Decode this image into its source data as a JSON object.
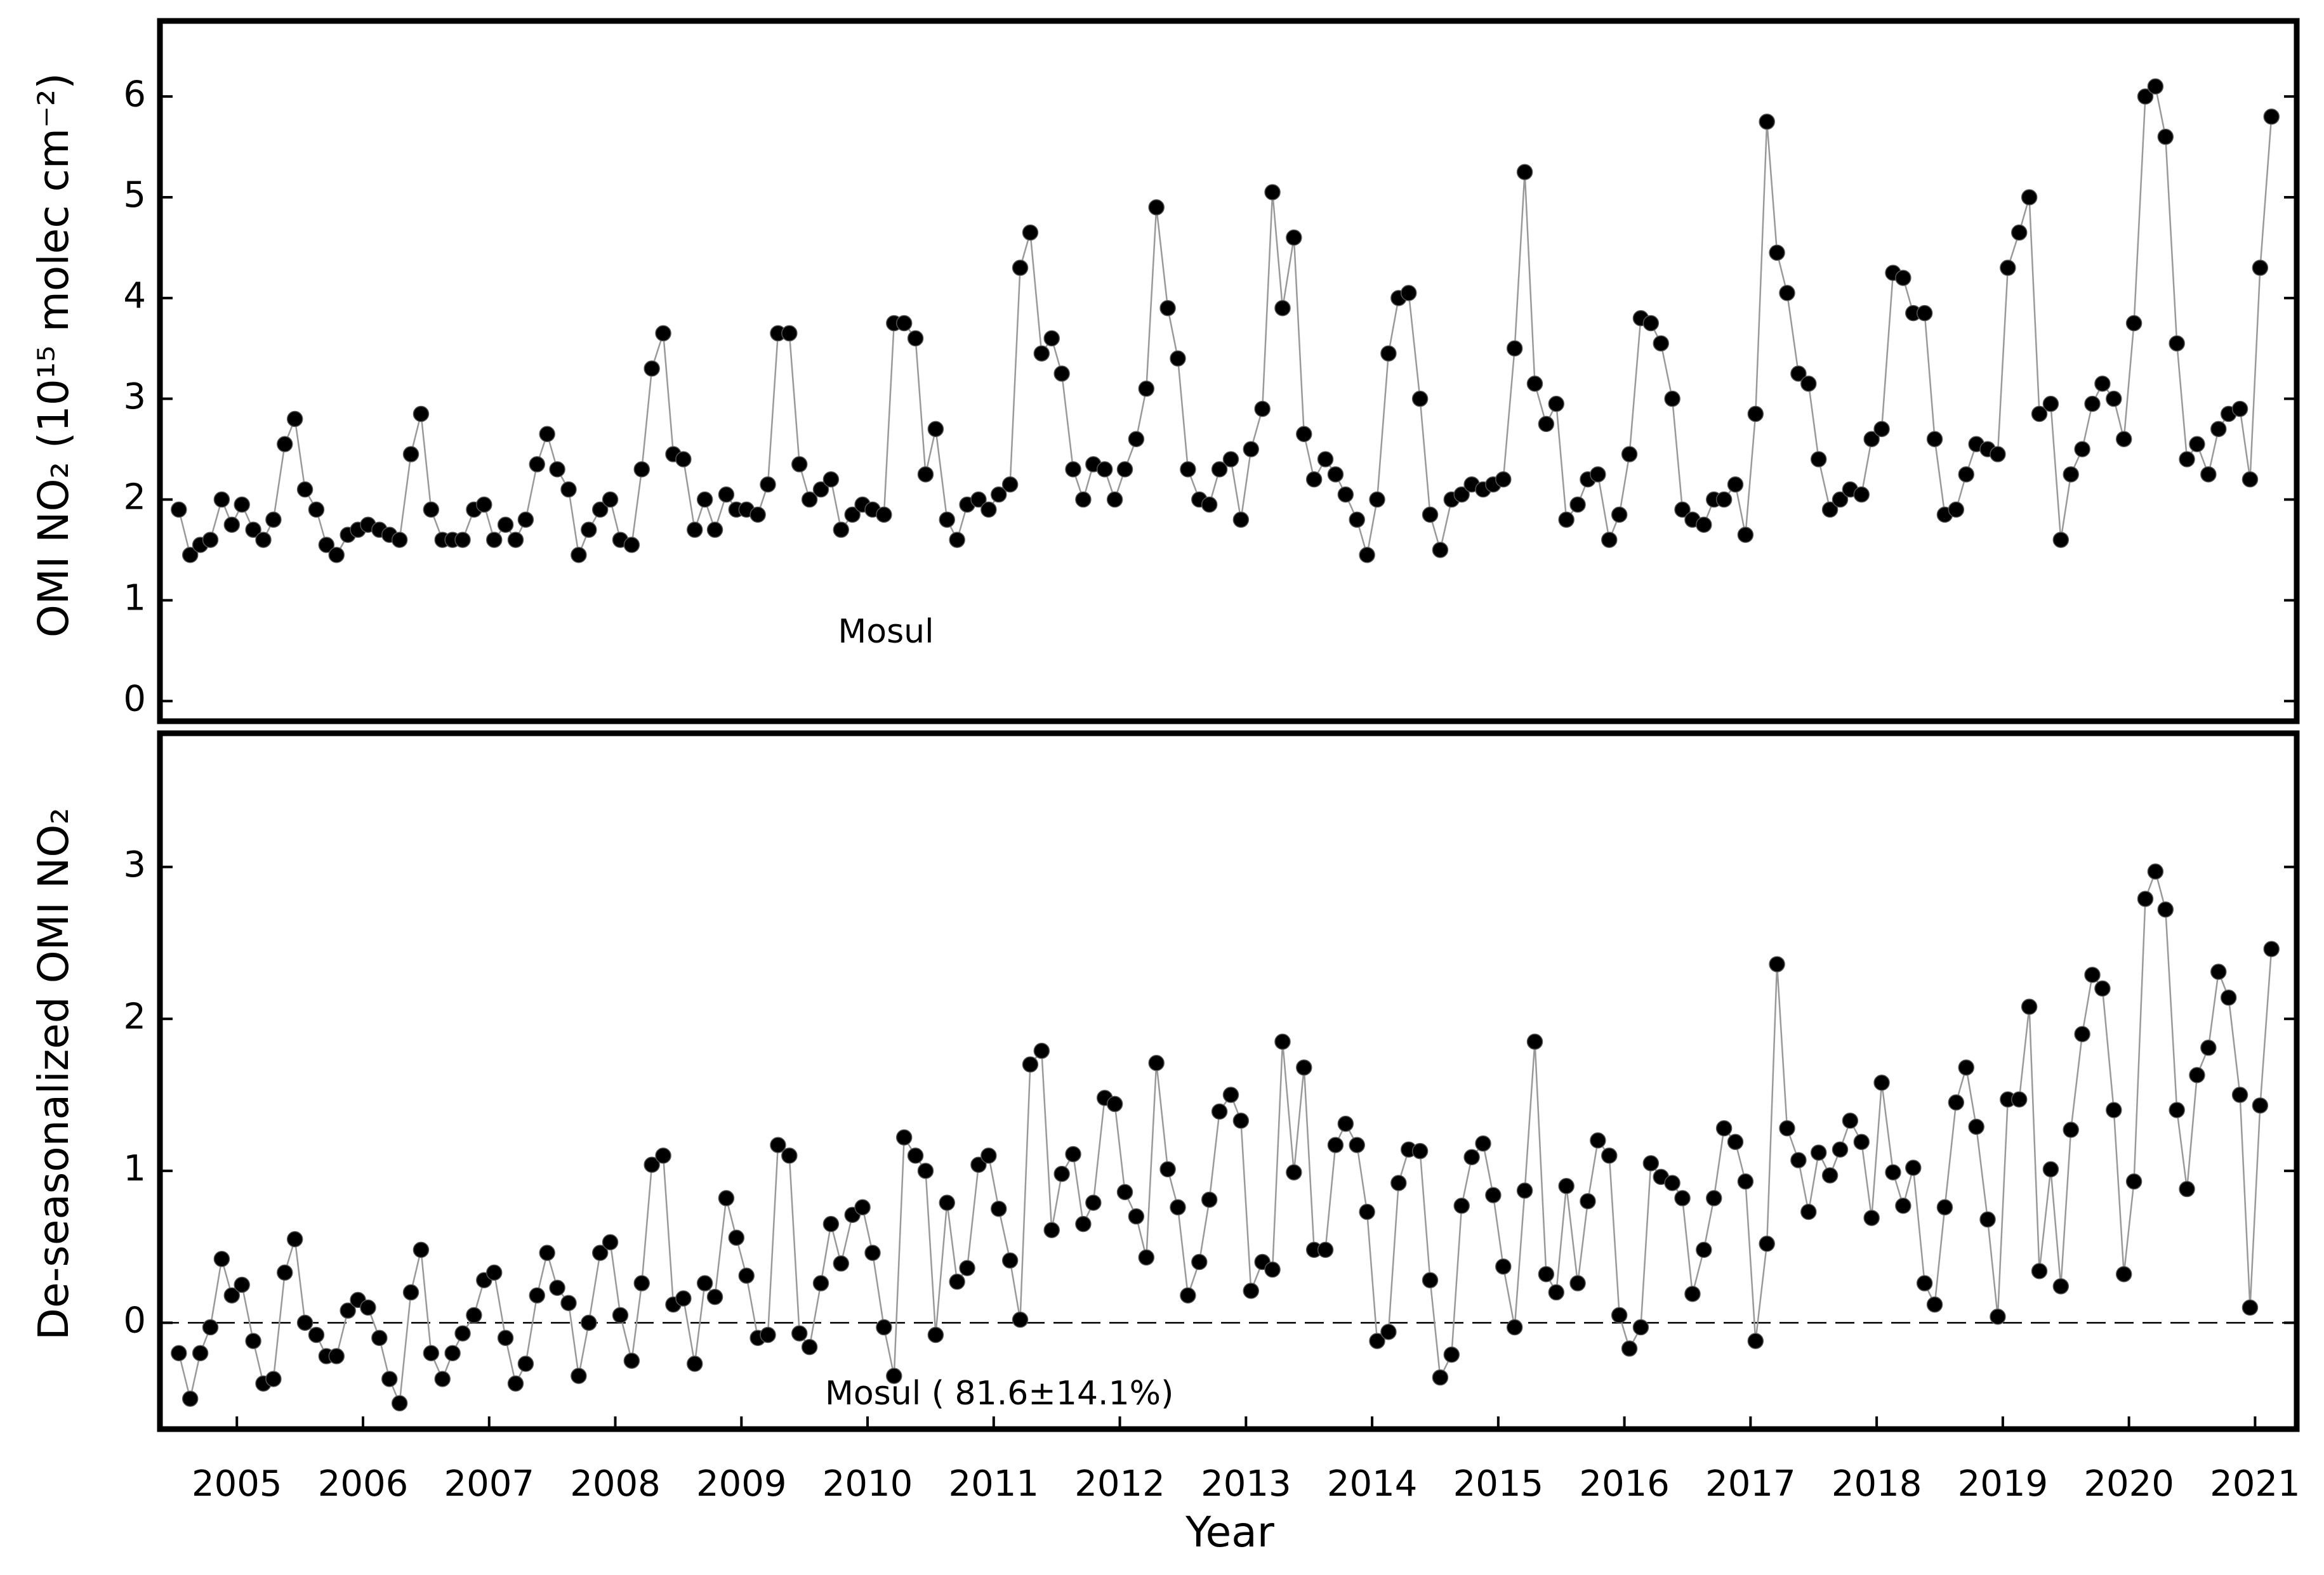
{
  "chart_data": [
    {
      "type": "line",
      "y_label": "OMI NO₂ (10¹⁵ molec cm⁻²)",
      "annotation": "Mosul",
      "line_color": "#999999",
      "marker_color": "#000000",
      "xlim": [
        2004.89,
        2021.83
      ],
      "ylim": [
        -0.2,
        6.75
      ],
      "yticks": [
        0,
        1,
        2,
        3,
        4,
        5,
        6
      ],
      "x": [
        2005.04,
        2005.13,
        2005.21,
        2005.29,
        2005.38,
        2005.46,
        2005.54,
        2005.63,
        2005.71,
        2005.79,
        2005.88,
        2005.96,
        2006.04,
        2006.13,
        2006.21,
        2006.29,
        2006.38,
        2006.46,
        2006.54,
        2006.63,
        2006.71,
        2006.79,
        2006.88,
        2006.96,
        2007.04,
        2007.13,
        2007.21,
        2007.29,
        2007.38,
        2007.46,
        2007.54,
        2007.63,
        2007.71,
        2007.79,
        2007.88,
        2007.96,
        2008.04,
        2008.13,
        2008.21,
        2008.29,
        2008.38,
        2008.46,
        2008.54,
        2008.63,
        2008.71,
        2008.79,
        2008.88,
        2008.96,
        2009.04,
        2009.13,
        2009.21,
        2009.29,
        2009.38,
        2009.46,
        2009.54,
        2009.63,
        2009.71,
        2009.79,
        2009.88,
        2009.96,
        2010.04,
        2010.13,
        2010.21,
        2010.29,
        2010.38,
        2010.46,
        2010.54,
        2010.63,
        2010.71,
        2010.79,
        2010.88,
        2010.96,
        2011.04,
        2011.13,
        2011.21,
        2011.29,
        2011.38,
        2011.46,
        2011.54,
        2011.63,
        2011.71,
        2011.79,
        2011.88,
        2011.96,
        2012.04,
        2012.13,
        2012.21,
        2012.29,
        2012.38,
        2012.46,
        2012.54,
        2012.63,
        2012.71,
        2012.79,
        2012.88,
        2012.96,
        2013.04,
        2013.13,
        2013.21,
        2013.29,
        2013.38,
        2013.46,
        2013.54,
        2013.63,
        2013.71,
        2013.79,
        2013.88,
        2013.96,
        2014.04,
        2014.13,
        2014.21,
        2014.29,
        2014.38,
        2014.46,
        2014.54,
        2014.63,
        2014.71,
        2014.79,
        2014.88,
        2014.96,
        2015.04,
        2015.13,
        2015.21,
        2015.29,
        2015.38,
        2015.46,
        2015.54,
        2015.63,
        2015.71,
        2015.79,
        2015.88,
        2015.96,
        2016.04,
        2016.13,
        2016.21,
        2016.29,
        2016.38,
        2016.46,
        2016.54,
        2016.63,
        2016.71,
        2016.79,
        2016.88,
        2016.96,
        2017.04,
        2017.13,
        2017.21,
        2017.29,
        2017.38,
        2017.46,
        2017.54,
        2017.63,
        2017.71,
        2017.79,
        2017.88,
        2017.96,
        2018.04,
        2018.13,
        2018.21,
        2018.29,
        2018.38,
        2018.46,
        2018.54,
        2018.63,
        2018.71,
        2018.79,
        2018.88,
        2018.96,
        2019.04,
        2019.13,
        2019.21,
        2019.29,
        2019.38,
        2019.46,
        2019.54,
        2019.63,
        2019.71,
        2019.79,
        2019.88,
        2019.96,
        2020.04,
        2020.13,
        2020.21,
        2020.29,
        2020.38,
        2020.46,
        2020.54,
        2020.63,
        2020.71,
        2020.79,
        2020.88,
        2020.96,
        2021.04,
        2021.13,
        2021.21,
        2021.29,
        2021.38,
        2021.46,
        2021.54,
        2021.63
      ],
      "values": [
        1.9,
        1.45,
        1.55,
        1.6,
        2.0,
        1.75,
        1.95,
        1.7,
        1.6,
        1.8,
        2.55,
        2.8,
        2.1,
        1.9,
        1.55,
        1.45,
        1.65,
        1.7,
        1.75,
        1.7,
        1.65,
        1.6,
        2.45,
        2.85,
        1.9,
        1.6,
        1.6,
        1.6,
        1.9,
        1.95,
        1.6,
        1.75,
        1.6,
        1.8,
        2.35,
        2.65,
        2.3,
        2.1,
        1.45,
        1.7,
        1.9,
        2.0,
        1.6,
        1.55,
        2.3,
        3.3,
        3.65,
        2.45,
        2.4,
        1.7,
        2.0,
        1.7,
        2.05,
        1.9,
        1.9,
        1.85,
        2.15,
        3.65,
        3.65,
        2.35,
        2.0,
        2.1,
        2.2,
        1.7,
        1.85,
        1.95,
        1.9,
        1.85,
        3.75,
        3.75,
        3.6,
        2.25,
        2.7,
        1.8,
        1.6,
        1.95,
        2.0,
        1.9,
        2.05,
        2.15,
        4.3,
        4.65,
        3.45,
        3.6,
        3.25,
        2.3,
        2.0,
        2.35,
        2.3,
        2.0,
        2.3,
        2.6,
        3.1,
        4.9,
        3.9,
        3.4,
        2.3,
        2.0,
        1.95,
        2.3,
        2.4,
        1.8,
        2.5,
        2.9,
        5.05,
        3.9,
        4.6,
        2.65,
        2.2,
        2.4,
        2.25,
        2.05,
        1.8,
        1.45,
        2.0,
        3.45,
        4.0,
        4.05,
        3.0,
        1.85,
        1.5,
        2.0,
        2.05,
        2.15,
        2.1,
        2.15,
        2.2,
        3.5,
        5.25,
        3.15,
        2.75,
        2.95,
        1.8,
        1.95,
        2.2,
        2.25,
        1.6,
        1.85,
        2.45,
        3.8,
        3.75,
        3.55,
        3.0,
        1.9,
        1.8,
        1.75,
        2.0,
        2.0,
        2.15,
        1.65,
        2.85,
        5.75,
        4.45,
        4.05,
        3.25,
        3.15,
        2.4,
        1.9,
        2.0,
        2.1,
        2.05,
        2.6,
        2.7,
        4.25,
        4.2,
        3.85,
        3.85,
        2.6,
        1.85,
        1.9,
        2.25,
        2.55,
        2.5,
        2.45,
        4.3,
        4.65,
        5.0,
        2.85,
        2.95,
        1.6,
        2.25,
        2.5,
        2.95,
        3.15,
        3.0,
        2.6,
        3.75,
        6.0,
        6.1,
        5.6,
        3.55,
        2.4,
        2.55,
        2.25,
        2.7,
        2.85,
        2.9,
        2.2,
        4.3,
        5.8
      ]
    },
    {
      "type": "line",
      "y_label": "De-seasonalized OMI NO₂",
      "x_label": "Year",
      "annotation": "Mosul ( 81.6±14.1%)",
      "line_color": "#999999",
      "marker_color": "#000000",
      "reference_line": {
        "value": 0,
        "style": "dashed"
      },
      "xlim": [
        2004.89,
        2021.83
      ],
      "xticks": [
        {
          "value": 2005.5,
          "label": "2005"
        },
        {
          "value": 2006.5,
          "label": "2006"
        },
        {
          "value": 2007.5,
          "label": "2007"
        },
        {
          "value": 2008.5,
          "label": "2008"
        },
        {
          "value": 2009.5,
          "label": "2009"
        },
        {
          "value": 2010.5,
          "label": "2010"
        },
        {
          "value": 2011.5,
          "label": "2011"
        },
        {
          "value": 2012.5,
          "label": "2012"
        },
        {
          "value": 2013.5,
          "label": "2013"
        },
        {
          "value": 2014.5,
          "label": "2014"
        },
        {
          "value": 2015.5,
          "label": "2015"
        },
        {
          "value": 2016.5,
          "label": "2016"
        },
        {
          "value": 2017.5,
          "label": "2017"
        },
        {
          "value": 2018.5,
          "label": "2018"
        },
        {
          "value": 2019.5,
          "label": "2019"
        },
        {
          "value": 2020.5,
          "label": "2020"
        },
        {
          "value": 2021.5,
          "label": "2021"
        }
      ],
      "ylim": [
        -0.7,
        3.88
      ],
      "yticks": [
        0,
        1,
        2,
        3
      ],
      "x": [
        2005.04,
        2005.13,
        2005.21,
        2005.29,
        2005.38,
        2005.46,
        2005.54,
        2005.63,
        2005.71,
        2005.79,
        2005.88,
        2005.96,
        2006.04,
        2006.13,
        2006.21,
        2006.29,
        2006.38,
        2006.46,
        2006.54,
        2006.63,
        2006.71,
        2006.79,
        2006.88,
        2006.96,
        2007.04,
        2007.13,
        2007.21,
        2007.29,
        2007.38,
        2007.46,
        2007.54,
        2007.63,
        2007.71,
        2007.79,
        2007.88,
        2007.96,
        2008.04,
        2008.13,
        2008.21,
        2008.29,
        2008.38,
        2008.46,
        2008.54,
        2008.63,
        2008.71,
        2008.79,
        2008.88,
        2008.96,
        2009.04,
        2009.13,
        2009.21,
        2009.29,
        2009.38,
        2009.46,
        2009.54,
        2009.63,
        2009.71,
        2009.79,
        2009.88,
        2009.96,
        2010.04,
        2010.13,
        2010.21,
        2010.29,
        2010.38,
        2010.46,
        2010.54,
        2010.63,
        2010.71,
        2010.79,
        2010.88,
        2010.96,
        2011.04,
        2011.13,
        2011.21,
        2011.29,
        2011.38,
        2011.46,
        2011.54,
        2011.63,
        2011.71,
        2011.79,
        2011.88,
        2011.96,
        2012.04,
        2012.13,
        2012.21,
        2012.29,
        2012.38,
        2012.46,
        2012.54,
        2012.63,
        2012.71,
        2012.79,
        2012.88,
        2012.96,
        2013.04,
        2013.13,
        2013.21,
        2013.29,
        2013.38,
        2013.46,
        2013.54,
        2013.63,
        2013.71,
        2013.79,
        2013.88,
        2013.96,
        2014.04,
        2014.13,
        2014.21,
        2014.29,
        2014.38,
        2014.46,
        2014.54,
        2014.63,
        2014.71,
        2014.79,
        2014.88,
        2014.96,
        2015.04,
        2015.13,
        2015.21,
        2015.29,
        2015.38,
        2015.46,
        2015.54,
        2015.63,
        2015.71,
        2015.79,
        2015.88,
        2015.96,
        2016.04,
        2016.13,
        2016.21,
        2016.29,
        2016.38,
        2016.46,
        2016.54,
        2016.63,
        2016.71,
        2016.79,
        2016.88,
        2016.96,
        2017.04,
        2017.13,
        2017.21,
        2017.29,
        2017.38,
        2017.46,
        2017.54,
        2017.63,
        2017.71,
        2017.79,
        2017.88,
        2017.96,
        2018.04,
        2018.13,
        2018.21,
        2018.29,
        2018.38,
        2018.46,
        2018.54,
        2018.63,
        2018.71,
        2018.79,
        2018.88,
        2018.96,
        2019.04,
        2019.13,
        2019.21,
        2019.29,
        2019.38,
        2019.46,
        2019.54,
        2019.63,
        2019.71,
        2019.79,
        2019.88,
        2019.96,
        2020.04,
        2020.13,
        2020.21,
        2020.29,
        2020.38,
        2020.46,
        2020.54,
        2020.63,
        2020.71,
        2020.79,
        2020.88,
        2020.96,
        2021.04,
        2021.13,
        2021.21,
        2021.29,
        2021.38,
        2021.46,
        2021.54,
        2021.63
      ],
      "values": [
        -0.2,
        -0.5,
        -0.2,
        -0.03,
        0.42,
        0.18,
        0.25,
        -0.12,
        -0.4,
        -0.37,
        0.33,
        0.55,
        0.0,
        -0.08,
        -0.22,
        -0.22,
        0.08,
        0.15,
        0.1,
        -0.1,
        -0.37,
        -0.53,
        0.2,
        0.48,
        -0.2,
        -0.37,
        -0.2,
        -0.07,
        0.05,
        0.28,
        0.33,
        -0.1,
        -0.4,
        -0.27,
        0.18,
        0.46,
        0.23,
        0.13,
        -0.35,
        0.0,
        0.46,
        0.53,
        0.05,
        -0.25,
        0.26,
        1.04,
        1.1,
        0.12,
        0.16,
        -0.27,
        0.26,
        0.17,
        0.82,
        0.56,
        0.31,
        -0.1,
        -0.08,
        1.17,
        1.1,
        -0.07,
        -0.16,
        0.26,
        0.65,
        0.39,
        0.71,
        0.76,
        0.46,
        -0.03,
        -0.35,
        1.22,
        1.1,
        1.0,
        -0.08,
        0.79,
        0.27,
        0.36,
        1.04,
        1.1,
        0.75,
        0.41,
        0.02,
        1.7,
        1.79,
        0.61,
        0.98,
        1.11,
        0.65,
        0.79,
        1.48,
        1.44,
        0.86,
        0.7,
        0.43,
        1.71,
        1.01,
        0.76,
        0.18,
        0.4,
        0.81,
        1.39,
        1.5,
        1.33,
        0.21,
        0.4,
        0.35,
        1.85,
        0.99,
        1.68,
        0.48,
        0.48,
        1.17,
        1.31,
        1.17,
        0.73,
        -0.12,
        -0.06,
        0.92,
        1.14,
        1.13,
        0.28,
        -0.36,
        -0.21,
        0.77,
        1.09,
        1.18,
        0.84,
        0.37,
        -0.03,
        0.87,
        1.85,
        0.32,
        0.2,
        0.9,
        0.26,
        0.8,
        1.2,
        1.1,
        0.05,
        -0.17,
        -0.03,
        1.05,
        0.96,
        0.92,
        0.82,
        0.19,
        0.48,
        0.82,
        1.28,
        1.19,
        0.93,
        -0.12,
        0.52,
        2.36,
        1.28,
        1.07,
        0.73,
        1.12,
        0.97,
        1.14,
        1.33,
        1.19,
        0.69,
        1.58,
        0.99,
        0.77,
        1.02,
        0.26,
        0.12,
        0.76,
        1.45,
        1.68,
        1.29,
        0.68,
        0.04,
        1.47,
        1.47,
        2.08,
        0.34,
        1.01,
        0.24,
        1.27,
        1.9,
        2.29,
        2.2,
        1.4,
        0.32,
        0.93,
        2.79,
        2.97,
        2.72,
        1.4,
        0.88,
        1.63,
        1.81,
        2.31,
        2.14,
        1.5,
        0.1,
        1.43,
        2.46
      ]
    }
  ]
}
